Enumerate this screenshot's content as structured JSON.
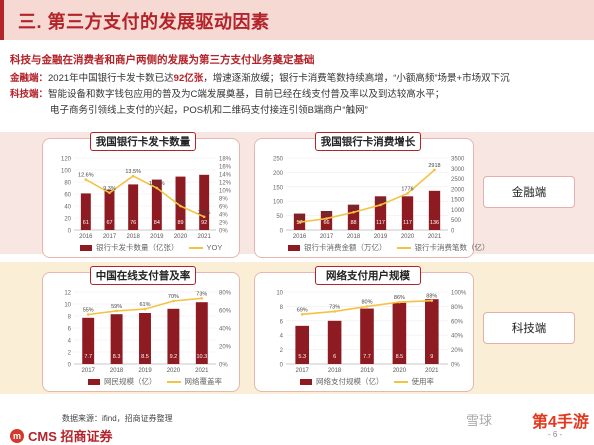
{
  "header": {
    "title": "三. 第三方支付的发展驱动因素"
  },
  "subtitle": "科技与金融在消费者和商户两侧的发展为第三方支付业务奠定基础",
  "paragraphs": {
    "fin_label": "金融端：",
    "fin_text_pre": "2021年中国银行卡发卡数已达",
    "fin_text_hl": "92亿张",
    "fin_text_post": "，增速逐渐放缓；银行卡消费笔数持续高增，“小额高频”场景+市场双下沉",
    "tech_label": "科技端：",
    "tech_text1": "智能设备和数字钱包应用的普及为C端发展奠基，目前已经在线支付普及率以及到达较高水平；",
    "tech_text2": "电子商务引领线上支付的兴起，POS机和二维码支付接连引领B端商户“触网”"
  },
  "side_labels": {
    "finance": "金融端",
    "tech": "科技端"
  },
  "source": "数据来源：ifind，招商证券整理",
  "logo": {
    "mark": "m",
    "text": "CMS 招商证券"
  },
  "watermark": "雪球",
  "brand": "第4手游",
  "page_number": "- 6 -",
  "colors": {
    "bar": "#8e1a22",
    "line": "#f4c344",
    "accent": "#b3232a"
  },
  "chart_data": [
    {
      "id": "c1",
      "type": "bar",
      "title": "我国银行卡发卡数量",
      "categories": [
        "2016",
        "2017",
        "2018",
        "2019",
        "2020",
        "2021"
      ],
      "series": [
        {
          "name": "银行卡发卡数量（亿张）",
          "kind": "bar",
          "axis": "left",
          "values": [
            61,
            67,
            76,
            84,
            89,
            92
          ],
          "labels": [
            "61",
            "67",
            "76",
            "84",
            "89",
            "92"
          ]
        },
        {
          "name": "YOY",
          "kind": "line",
          "axis": "right",
          "values": [
            12.6,
            9.3,
            13.5,
            10.5,
            6.0,
            3.3
          ],
          "labels": [
            "12.6%",
            "9.3%",
            "13.5%",
            "10.5%",
            "6%",
            "3.3%"
          ]
        }
      ],
      "left_ylim": [
        0,
        120
      ],
      "left_ticks": [
        "0",
        "20",
        "40",
        "60",
        "80",
        "100",
        "120"
      ],
      "right_ylim": [
        0,
        18
      ],
      "right_ticks": [
        "0%",
        "2%",
        "4%",
        "6%",
        "8%",
        "10%",
        "12%",
        "14%",
        "16%",
        "18%"
      ],
      "legend": "bottom"
    },
    {
      "id": "c2",
      "type": "bar",
      "title": "我国银行卡消费增长",
      "categories": [
        "2016",
        "2017",
        "2018",
        "2019",
        "2020",
        "2021"
      ],
      "series": [
        {
          "name": "银行卡消费金额（万亿）",
          "kind": "bar",
          "axis": "left",
          "values": [
            57,
            66,
            88,
            117,
            117,
            136
          ],
          "labels": [
            "57",
            "66",
            "88",
            "117",
            "117",
            "136"
          ]
        },
        {
          "name": "银行卡消费笔数（亿）",
          "kind": "line",
          "axis": "right",
          "values": [
            381,
            555,
            863,
            1218,
            1776,
            2918
          ],
          "labels": [
            "381",
            "555",
            "863",
            "1218",
            "1776",
            "2918"
          ]
        }
      ],
      "left_ylim": [
        0,
        250
      ],
      "left_ticks": [
        "0",
        "50",
        "100",
        "150",
        "200",
        "250"
      ],
      "right_ylim": [
        0,
        3500
      ],
      "right_ticks": [
        "0",
        "500",
        "1000",
        "1500",
        "2000",
        "2500",
        "3000",
        "3500"
      ],
      "legend": "bottom"
    },
    {
      "id": "c3",
      "type": "bar",
      "title": "中国在线支付普及率",
      "categories": [
        "2017",
        "2018",
        "2019",
        "2020",
        "2021"
      ],
      "series": [
        {
          "name": "网民规模（亿）",
          "kind": "bar",
          "axis": "left",
          "values": [
            7.7,
            8.3,
            8.5,
            9.2,
            10.3
          ],
          "labels": [
            "7.7",
            "8.3",
            "8.5",
            "9.2",
            "10.3"
          ]
        },
        {
          "name": "网络覆盖率",
          "kind": "line",
          "axis": "right",
          "values": [
            55,
            59,
            61,
            70,
            73
          ],
          "labels": [
            "55%",
            "59%",
            "61%",
            "70%",
            "73%"
          ]
        }
      ],
      "left_ylim": [
        0,
        12
      ],
      "left_ticks": [
        "0",
        "2",
        "4",
        "6",
        "8",
        "10",
        "12"
      ],
      "right_ylim": [
        0,
        80
      ],
      "right_ticks": [
        "0%",
        "20%",
        "40%",
        "60%",
        "80%"
      ],
      "legend": "bottom"
    },
    {
      "id": "c4",
      "type": "bar",
      "title": "网络支付用户规模",
      "categories": [
        "2017",
        "2018",
        "2019",
        "2020",
        "2021"
      ],
      "series": [
        {
          "name": "网络支付规模（亿）",
          "kind": "bar",
          "axis": "left",
          "values": [
            5.3,
            6.0,
            7.7,
            8.5,
            9.0
          ],
          "labels": [
            "5.3",
            "6",
            "7.7",
            "8.5",
            "9"
          ]
        },
        {
          "name": "使用率",
          "kind": "line",
          "axis": "right",
          "values": [
            69,
            73,
            80,
            86,
            88
          ],
          "labels": [
            "69%",
            "73%",
            "80%",
            "86%",
            "88%"
          ]
        }
      ],
      "left_ylim": [
        0,
        10
      ],
      "left_ticks": [
        "0",
        "2",
        "4",
        "6",
        "8",
        "10"
      ],
      "right_ylim": [
        0,
        100
      ],
      "right_ticks": [
        "0%",
        "20%",
        "40%",
        "60%",
        "80%",
        "100%"
      ],
      "legend": "bottom"
    }
  ]
}
